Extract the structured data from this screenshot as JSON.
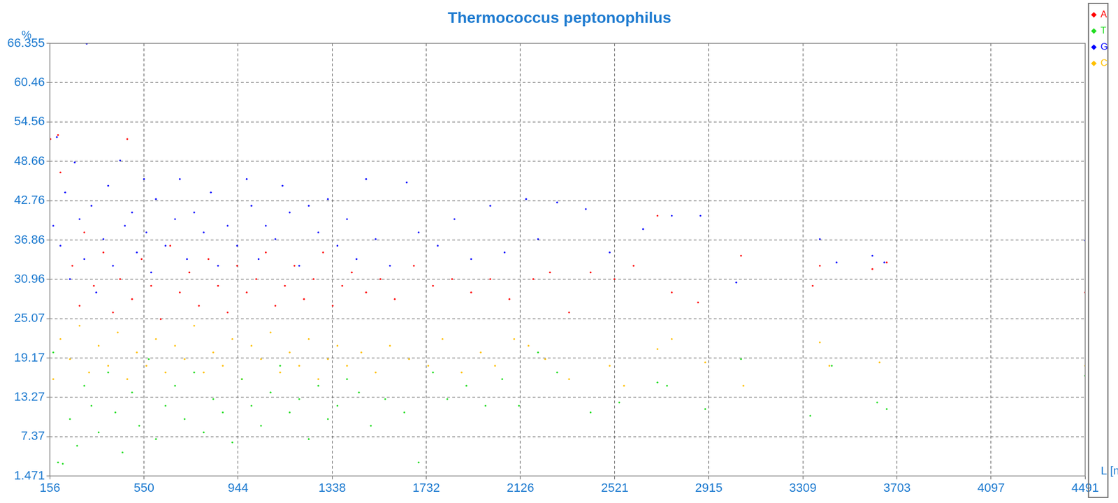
{
  "chart_data": {
    "type": "scatter",
    "title": "Thermococcus peptonophilus",
    "x_label": "L [nucl]",
    "y_label": "%",
    "xlim": [
      156,
      4491
    ],
    "xticks": [
      156,
      550,
      944,
      1338,
      1732,
      2126,
      2521,
      2915,
      3309,
      3703,
      4097,
      4491
    ],
    "ylim": [
      1.471,
      66.355
    ],
    "yticks": [
      1.471,
      7.37,
      13.27,
      19.17,
      25.07,
      30.96,
      36.86,
      42.76,
      48.66,
      54.56,
      60.46,
      66.355
    ],
    "grid": true,
    "legend": "upper right",
    "series": [
      {
        "name": "A",
        "color": "#ff0000",
        "x": [
          158,
          190,
          200,
          250,
          280,
          300,
          340,
          380,
          420,
          450,
          480,
          500,
          540,
          580,
          620,
          660,
          700,
          740,
          780,
          820,
          860,
          900,
          940,
          980,
          1020,
          1060,
          1100,
          1140,
          1180,
          1220,
          1260,
          1300,
          1340,
          1380,
          1420,
          1480,
          1540,
          1600,
          1680,
          1760,
          1840,
          1920,
          2000,
          2080,
          2180,
          2250,
          2330,
          2420,
          2520,
          2600,
          2700,
          2760,
          2870,
          3050,
          3350,
          3380,
          3600,
          3660,
          4491
        ],
        "values": [
          52,
          52.6,
          47,
          33,
          27,
          38,
          30,
          35,
          26,
          31,
          52,
          28,
          34,
          30,
          25,
          36,
          29,
          32,
          27,
          34,
          30,
          26,
          33,
          29,
          31,
          35,
          27,
          30,
          33,
          28,
          31,
          35,
          27,
          30,
          32,
          29,
          31,
          28,
          33,
          30,
          31,
          29,
          31,
          28,
          31,
          32,
          26,
          32,
          31,
          33,
          40.5,
          29,
          27.5,
          34.5,
          30,
          33,
          32.5,
          33.5,
          29
        ]
      },
      {
        "name": "T",
        "color": "#22dd22",
        "x": [
          170,
          190,
          210,
          240,
          270,
          300,
          330,
          360,
          400,
          430,
          460,
          500,
          530,
          570,
          600,
          640,
          680,
          720,
          760,
          800,
          840,
          880,
          920,
          960,
          1000,
          1040,
          1080,
          1120,
          1160,
          1200,
          1240,
          1280,
          1320,
          1360,
          1400,
          1450,
          1500,
          1560,
          1640,
          1700,
          1760,
          1820,
          1900,
          1980,
          2050,
          2120,
          2200,
          2280,
          2420,
          2540,
          2700,
          2740,
          2900,
          3050,
          3340,
          3430,
          3620,
          3660,
          4491
        ],
        "values": [
          20,
          3.5,
          3.3,
          10,
          6,
          15,
          12,
          8,
          17,
          11,
          5,
          14,
          9,
          19,
          7,
          12,
          15,
          10,
          17,
          8,
          13,
          11,
          6.5,
          16,
          12,
          9,
          14,
          18,
          11,
          13,
          7,
          15,
          10,
          12,
          16,
          14,
          9,
          13,
          11,
          3.5,
          17,
          13,
          15,
          12,
          16,
          12,
          20,
          17,
          11,
          12.5,
          15.5,
          15,
          11.5,
          19,
          10.5,
          18,
          12.5,
          11.5,
          16.5
        ]
      },
      {
        "name": "G",
        "color": "#0000ff",
        "x": [
          170,
          185,
          200,
          220,
          240,
          260,
          280,
          300,
          310,
          330,
          350,
          380,
          400,
          420,
          450,
          470,
          500,
          520,
          550,
          560,
          580,
          600,
          640,
          680,
          700,
          730,
          760,
          800,
          830,
          860,
          900,
          940,
          980,
          1000,
          1030,
          1060,
          1100,
          1130,
          1160,
          1200,
          1240,
          1280,
          1320,
          1360,
          1400,
          1440,
          1480,
          1520,
          1580,
          1650,
          1700,
          1780,
          1850,
          1920,
          2000,
          2060,
          2150,
          2200,
          2280,
          2400,
          2500,
          2640,
          2760,
          2880,
          3030,
          3380,
          3450,
          3600,
          3650,
          4491
        ],
        "values": [
          39,
          52.3,
          36,
          44,
          31,
          48.5,
          40,
          34,
          66.3,
          42,
          29,
          37,
          45,
          33,
          48.8,
          39,
          41,
          35,
          46,
          38,
          32,
          43,
          36,
          40,
          46,
          34,
          41,
          38,
          44,
          33,
          39,
          36,
          46,
          42,
          34,
          39,
          37,
          45,
          41,
          33,
          42,
          38,
          43,
          36,
          40,
          34,
          46,
          37,
          33,
          45.5,
          38,
          36,
          40,
          34,
          42,
          35,
          43,
          37,
          42.5,
          41.5,
          35,
          38.5,
          40.5,
          40.5,
          30.5,
          37,
          33.5,
          34.5,
          33.5,
          36.8
        ]
      },
      {
        "name": "C",
        "color": "#ffc000",
        "x": [
          170,
          200,
          240,
          280,
          320,
          360,
          400,
          440,
          480,
          520,
          560,
          600,
          640,
          680,
          720,
          760,
          800,
          840,
          880,
          920,
          960,
          1000,
          1040,
          1080,
          1120,
          1160,
          1200,
          1240,
          1280,
          1320,
          1360,
          1400,
          1460,
          1520,
          1580,
          1660,
          1740,
          1800,
          1880,
          1960,
          2020,
          2100,
          2160,
          2230,
          2330,
          2500,
          2560,
          2700,
          2760,
          2900,
          3060,
          3380,
          3420,
          3630,
          4491
        ],
        "values": [
          16,
          22,
          19,
          24,
          17,
          21,
          18,
          23,
          16,
          20,
          18,
          22,
          17,
          21,
          19,
          24,
          17,
          20,
          18,
          22,
          16,
          21,
          19,
          23,
          17,
          20,
          18,
          22,
          16,
          19,
          21,
          18,
          20,
          17,
          21,
          19,
          18,
          22,
          17,
          20,
          18,
          22,
          21,
          19,
          16,
          18,
          15,
          20.5,
          22,
          18.5,
          15,
          21.5,
          18,
          18.5,
          18
        ]
      }
    ]
  }
}
